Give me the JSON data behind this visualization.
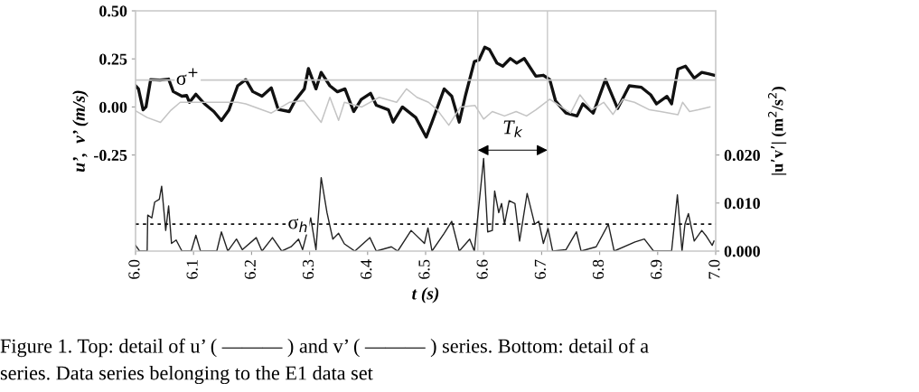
{
  "chart_data": {
    "type": "line",
    "xlabel": "t (s)",
    "ylabel": "u’,  v’ (m/s)",
    "y2label": "|u’v’| (m$^{2}$/s$^{2}$)",
    "series": [
      {
        "color": "#111111",
        "x": [
          6.0,
          6.005,
          6.013,
          6.018,
          6.026,
          6.042,
          6.057,
          6.065,
          6.08,
          6.088,
          6.093,
          6.104,
          6.119,
          6.135,
          6.148,
          6.161,
          6.176,
          6.19,
          6.202,
          6.218,
          6.234,
          6.246,
          6.265,
          6.275,
          6.291,
          6.298,
          6.311,
          6.32,
          6.335,
          6.348,
          6.361,
          6.376,
          6.389,
          6.405,
          6.415,
          6.436,
          6.444,
          6.46,
          6.483,
          6.501,
          6.511,
          6.532,
          6.545,
          6.558,
          6.569,
          6.584,
          6.592,
          6.602,
          6.61,
          6.623,
          6.633,
          6.646,
          6.657,
          6.67,
          6.69,
          6.703,
          6.714,
          6.724,
          6.742,
          6.761,
          6.771,
          6.789,
          6.81,
          6.831,
          6.851,
          6.872,
          6.888,
          6.898,
          6.916,
          6.924,
          6.935,
          6.948,
          6.963,
          6.976,
          6.987,
          6.997
        ],
        "values": [
          0.11,
          0.094,
          -0.015,
          0.0,
          0.142,
          0.14,
          0.145,
          0.08,
          0.056,
          0.06,
          0.024,
          0.066,
          0.016,
          -0.024,
          -0.071,
          -0.016,
          0.11,
          0.142,
          0.08,
          0.056,
          0.099,
          -0.013,
          -0.024,
          0.033,
          0.094,
          0.2,
          0.094,
          0.18,
          0.11,
          0.079,
          0.094,
          -0.024,
          0.039,
          0.071,
          0.009,
          -0.015,
          -0.079,
          0.0,
          -0.055,
          -0.157,
          -0.079,
          0.094,
          0.056,
          -0.079,
          0.063,
          0.236,
          0.244,
          0.311,
          0.299,
          0.228,
          0.212,
          0.252,
          0.228,
          0.252,
          0.16,
          0.165,
          0.142,
          0.031,
          -0.032,
          -0.047,
          0.016,
          -0.032,
          0.142,
          -0.008,
          0.11,
          0.102,
          0.063,
          0.016,
          0.055,
          0.016,
          0.197,
          0.212,
          0.15,
          0.18,
          0.173,
          0.165
        ]
      },
      {
        "color": "#c4c4c4",
        "x": [
          6.0,
          6.02,
          6.043,
          6.06,
          6.077,
          6.176,
          6.19,
          6.234,
          6.265,
          6.29,
          6.32,
          6.335,
          6.35,
          6.36,
          6.39,
          6.42,
          6.45,
          6.467,
          6.485,
          6.505,
          6.52,
          6.54,
          6.56,
          6.585,
          6.6,
          6.615,
          6.636,
          6.656,
          6.674,
          6.69,
          6.714,
          6.73,
          6.75,
          6.766,
          6.786,
          6.807,
          6.823,
          6.84,
          6.86,
          6.886,
          6.905,
          6.935,
          6.943,
          6.955,
          6.97,
          6.99
        ],
        "values": [
          -0.02,
          -0.055,
          -0.08,
          -0.02,
          0.024,
          0.024,
          0.016,
          -0.032,
          0.024,
          0.033,
          -0.08,
          0.05,
          -0.07,
          0.024,
          0.0,
          0.05,
          0.024,
          0.094,
          0.05,
          0.024,
          -0.015,
          -0.095,
          0.0,
          0.008,
          -0.063,
          -0.024,
          -0.047,
          -0.024,
          -0.047,
          -0.015,
          0.04,
          0.008,
          -0.032,
          0.063,
          -0.015,
          0.024,
          -0.039,
          0.04,
          0.024,
          -0.015,
          -0.024,
          -0.04,
          0.024,
          -0.024,
          -0.015,
          0.0
        ]
      },
      {
        "color": "#222222",
        "axis": "y2",
        "x": [
          6.0,
          6.007,
          6.02,
          6.021,
          6.028,
          6.033,
          6.041,
          6.045,
          6.052,
          6.057,
          6.062,
          6.07,
          6.08,
          6.096,
          6.104,
          6.112,
          6.14,
          6.148,
          6.159,
          6.174,
          6.184,
          6.208,
          6.218,
          6.236,
          6.252,
          6.268,
          6.281,
          6.288,
          6.302,
          6.311,
          6.32,
          6.33,
          6.34,
          6.35,
          6.36,
          6.378,
          6.404,
          6.415,
          6.441,
          6.452,
          6.475,
          6.498,
          6.504,
          6.511,
          6.532,
          6.545,
          6.558,
          6.576,
          6.584,
          6.6,
          6.607,
          6.615,
          6.619,
          6.626,
          6.631,
          6.636,
          6.644,
          6.654,
          6.662,
          6.675,
          6.688,
          6.695,
          6.703,
          6.711,
          6.719,
          6.742,
          6.76,
          6.768,
          6.794,
          6.815,
          6.825,
          6.861,
          6.877,
          6.893,
          6.924,
          6.934,
          6.942,
          6.947,
          6.953,
          6.963,
          6.976,
          6.984,
          6.994,
          6.997
        ],
        "values": [
          0.0012,
          0.0,
          0.0,
          0.0075,
          0.0069,
          0.0102,
          0.0108,
          0.0135,
          0.0043,
          0.0094,
          0.0016,
          0.0023,
          0.0,
          0.0,
          0.0033,
          0.0,
          0.0,
          0.004,
          0.0,
          0.0025,
          0.0003,
          0.0028,
          0.0,
          0.0028,
          0.0,
          0.0009,
          0.0025,
          0.0003,
          0.0069,
          0.0003,
          0.0153,
          0.008,
          0.0025,
          0.0037,
          0.0015,
          0.0,
          0.0028,
          0.0,
          0.0009,
          0.0,
          0.0043,
          0.0016,
          0.0048,
          0.0,
          0.0037,
          0.0062,
          0.0,
          0.0025,
          0.0,
          0.0193,
          0.004,
          0.0043,
          0.0125,
          0.008,
          0.0099,
          0.0056,
          0.0105,
          0.0099,
          0.0021,
          0.012,
          0.0056,
          0.0062,
          0.0016,
          0.0047,
          0.0,
          0.0003,
          0.004,
          0.0,
          0.0009,
          0.0056,
          0.0,
          0.0019,
          0.0025,
          0.0,
          0.0,
          0.0117,
          0.0,
          0.0056,
          0.0078,
          0.0021,
          0.0043,
          0.0031,
          0.0012,
          0.0021
        ]
      }
    ],
    "xlim": [
      6.0,
      7.0
    ],
    "xticks": [
      {
        "value": 6.0,
        "label": "6.0"
      },
      {
        "value": 6.1,
        "label": "6.1"
      },
      {
        "value": 6.2,
        "label": "6.2"
      },
      {
        "value": 6.3,
        "label": "6.3"
      },
      {
        "value": 6.4,
        "label": "6.4"
      },
      {
        "value": 6.5,
        "label": "6.5"
      },
      {
        "value": 6.6,
        "label": "6.6"
      },
      {
        "value": 6.7,
        "label": "6.7"
      },
      {
        "value": 6.8,
        "label": "6.8"
      },
      {
        "value": 6.9,
        "label": "6.9"
      },
      {
        "value": 7.0,
        "label": "7.0"
      }
    ],
    "ylim": [
      -0.75,
      0.5
    ],
    "yticks": [
      {
        "value": -0.25,
        "label": "-0.25"
      },
      {
        "value": 0,
        "label": "0.00"
      },
      {
        "value": 0.25,
        "label": "0.25"
      },
      {
        "value": 0.5,
        "label": "0.50"
      }
    ],
    "y2lim": [
      0,
      0.05
    ],
    "y2ticks": [
      {
        "value": 0,
        "label": "0.000"
      },
      {
        "value": 0.01,
        "label": "0.010"
      },
      {
        "value": 0.02,
        "label": "0.020"
      }
    ],
    "ref_lines": [
      {
        "axis": "y",
        "value": 0.14,
        "label": "σ$^{+}$",
        "color": "#c8c8c8",
        "line_style": "solid"
      },
      {
        "axis": "y2",
        "value": 0.0056,
        "label": "σ$_{h}$",
        "color": "#111111",
        "line_style": "dotted"
      },
      {
        "axis": "x",
        "value": 6.59,
        "color": "#c8c8c8",
        "line_style": "solid"
      },
      {
        "axis": "x",
        "value": 6.71,
        "color": "#c8c8c8",
        "line_style": "solid"
      }
    ],
    "annotations": [
      "T$_{k}$",
      "Figure 1. Top: detail of u’ ( ——— ) and v’ ( ——— ) series. Bottom: detail of a",
      "series. Data series belonging to the E1 data set"
    ],
    "grid": false,
    "legend": false,
    "marker": "none",
    "line_style": "solid"
  }
}
